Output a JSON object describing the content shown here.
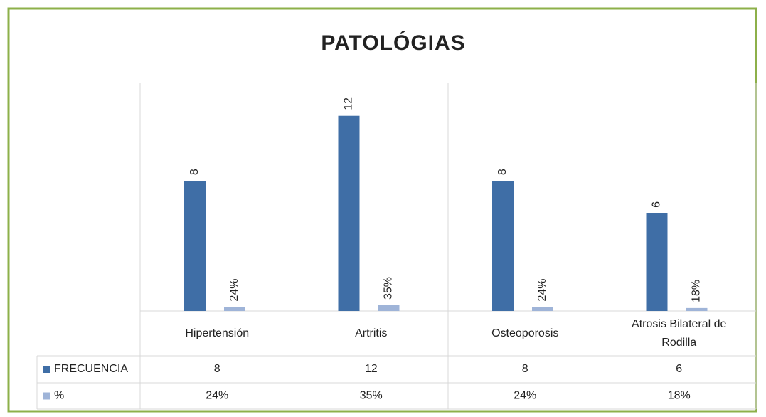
{
  "chart_data": {
    "type": "bar",
    "title": "PATOLÓGIAS",
    "categories": [
      "Hipertensión",
      "Artritis",
      "Osteoporosis",
      "Atrosis Bilateral de Rodilla"
    ],
    "series": [
      {
        "name": "FRECUENCIA",
        "color": "#3f6ea6",
        "values": [
          8,
          12,
          8,
          6
        ]
      },
      {
        "name": "%",
        "color": "#9fb4d8",
        "values": [
          0.24,
          0.35,
          0.24,
          0.18
        ],
        "value_labels": [
          "24%",
          "35%",
          "24%",
          "18%"
        ]
      }
    ],
    "ylim": [
      0,
      14
    ],
    "data_table": true
  }
}
